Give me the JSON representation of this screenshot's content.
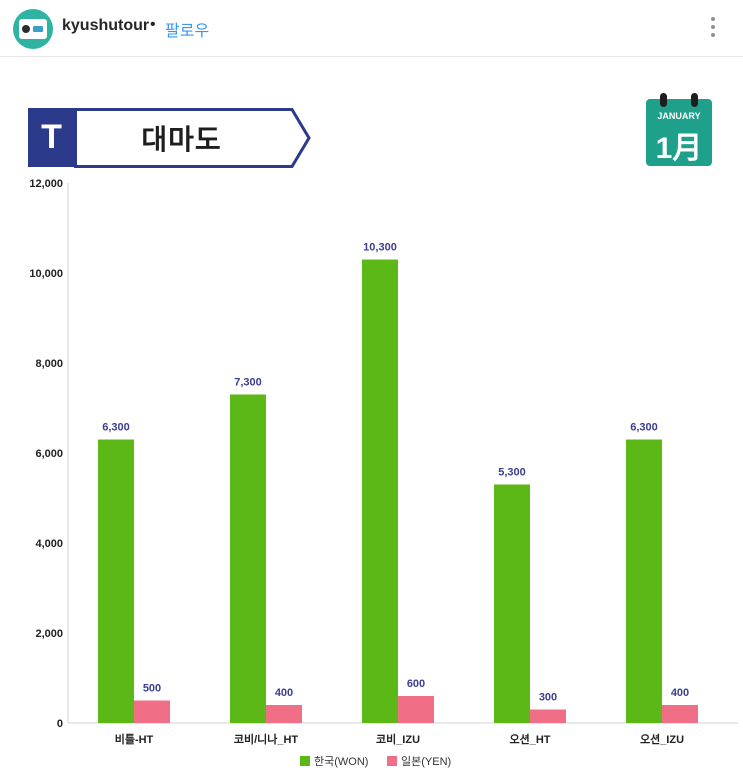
{
  "header": {
    "username": "kyushutour",
    "separator": "•",
    "follow_label": "팔로우",
    "more_icon": "more-vertical-icon"
  },
  "banner": {
    "badge": "T",
    "title": "대마도"
  },
  "calendar": {
    "month": "JANUARY",
    "day": "1月"
  },
  "colors": {
    "won": "#5cb817",
    "yen": "#f06e86",
    "banner_navy": "#2c3a8c",
    "calendar_teal": "#1fa08a",
    "data_label": "#3b3f8f"
  },
  "chart_data": {
    "type": "bar",
    "categories": [
      "비틀-HT",
      "코비/니나_HT",
      "코비_IZU",
      "오션_HT",
      "오션_IZU"
    ],
    "series": [
      {
        "name": "한국(WON)",
        "values": [
          6300,
          7300,
          10300,
          5300,
          6300
        ],
        "labels": [
          "6,300",
          "7,300",
          "10,300",
          "5,300",
          "6,300"
        ]
      },
      {
        "name": "일본(YEN)",
        "values": [
          500,
          400,
          600,
          300,
          400
        ],
        "labels": [
          "500",
          "400",
          "600",
          "300",
          "400"
        ]
      }
    ],
    "y_ticks": [
      0,
      2000,
      4000,
      6000,
      8000,
      10000,
      12000
    ],
    "y_tick_labels": [
      "0",
      "2,000",
      "4,000",
      "6,000",
      "8,000",
      "10,000",
      "12,000"
    ],
    "ylim": [
      0,
      12000
    ],
    "grid": false,
    "legend_position": "bottom"
  }
}
